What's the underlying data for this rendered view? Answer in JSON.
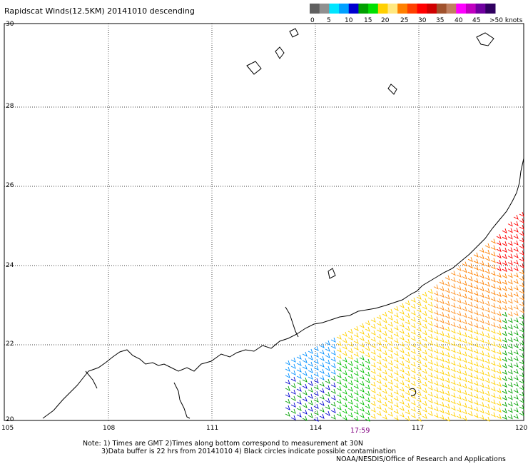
{
  "title": "Rapidscat Winds(12.5KM) 20141010 descending",
  "legend": {
    "colors": [
      "#606060",
      "#909090",
      "#00e5ff",
      "#00a0ff",
      "#0000d0",
      "#00a000",
      "#00e000",
      "#ffd000",
      "#ffe880",
      "#ff8000",
      "#ff4000",
      "#ff0000",
      "#d00000",
      "#a0522d",
      "#c08060",
      "#ff00ff",
      "#c000c0",
      "#7000a0",
      "#300060"
    ],
    "ticks": [
      "0",
      "5",
      "10",
      "15",
      "20",
      "25",
      "30",
      "35",
      "40",
      "45",
      ">50 knots"
    ]
  },
  "axes": {
    "lon_ticks": [
      "105",
      "108",
      "111",
      "114",
      "117",
      "120"
    ],
    "lat_ticks": [
      "30",
      "28",
      "26",
      "24",
      "22",
      "20"
    ],
    "lon_range": [
      105,
      120
    ],
    "lat_range": [
      20,
      30
    ]
  },
  "time_label": "17:59",
  "notes": {
    "line1": "Note: 1) Times are GMT 2)Times along bottom correspond to measurement at 30N",
    "line2": "3)Data buffer is 22 hrs from 20141010 4) Black circles indicate possible contamination",
    "line3": "NOAA/NESDIS/Office of Research and Applications"
  }
}
